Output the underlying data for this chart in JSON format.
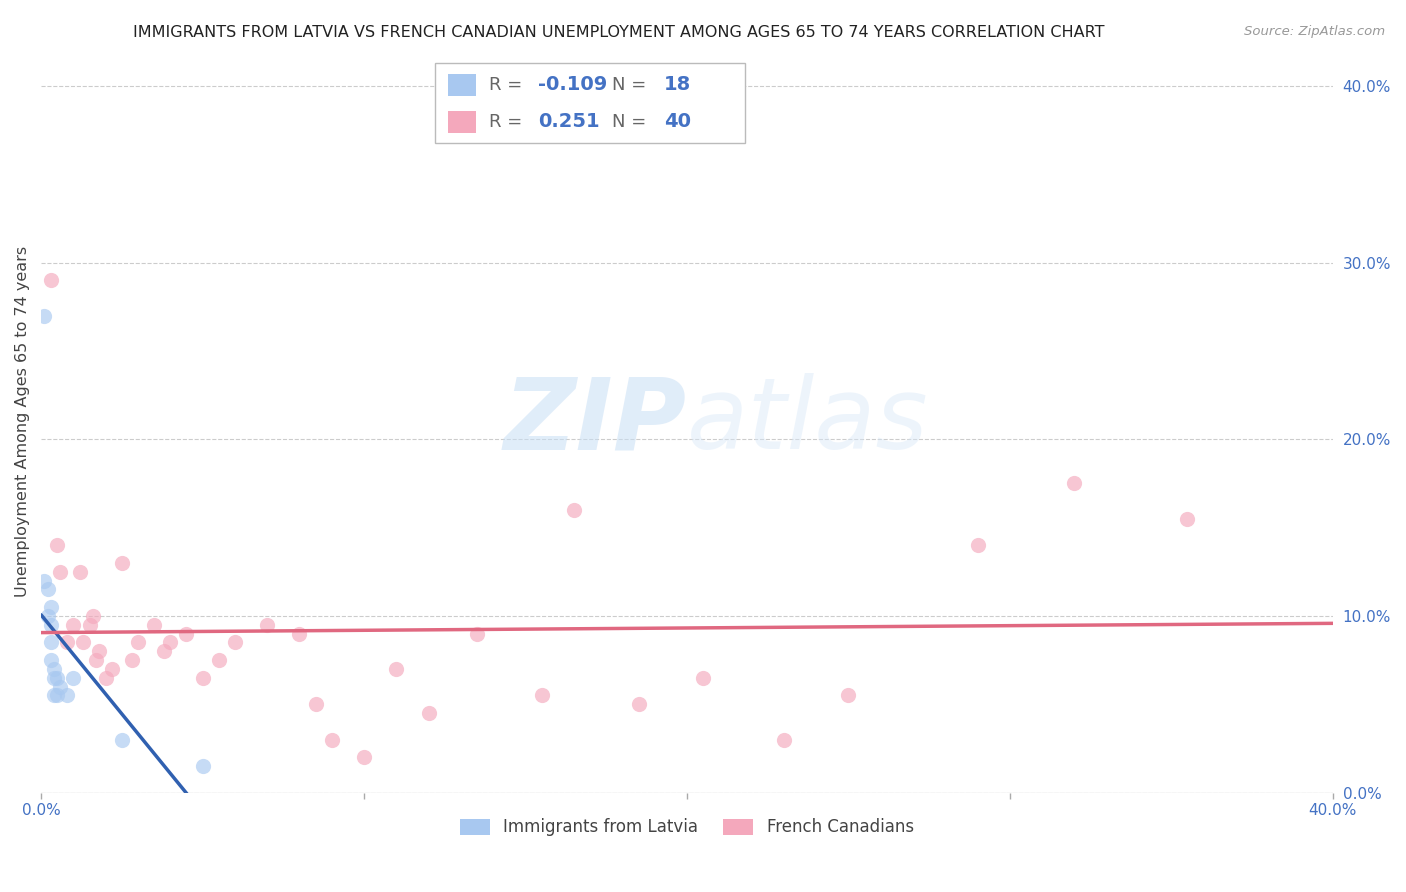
{
  "title": "IMMIGRANTS FROM LATVIA VS FRENCH CANADIAN UNEMPLOYMENT AMONG AGES 65 TO 74 YEARS CORRELATION CHART",
  "source": "Source: ZipAtlas.com",
  "ylabel": "Unemployment Among Ages 65 to 74 years",
  "xlim": [
    0.0,
    0.4
  ],
  "ylim": [
    0.0,
    0.42
  ],
  "xticks": [
    0.0,
    0.1,
    0.2,
    0.3,
    0.4
  ],
  "xtick_labels": [
    "0.0%",
    "",
    "",
    "",
    "40.0%"
  ],
  "yticks_right": [
    0.0,
    0.1,
    0.2,
    0.3,
    0.4
  ],
  "ytick_labels_right": [
    "0.0%",
    "10.0%",
    "20.0%",
    "30.0%",
    "40.0%"
  ],
  "legend_R_blue": "-0.109",
  "legend_N_blue": "18",
  "legend_R_pink": "0.251",
  "legend_N_pink": "40",
  "blue_color": "#a8c8f0",
  "pink_color": "#f4a8bc",
  "blue_line_color": "#3060b0",
  "pink_line_color": "#e06880",
  "blue_line_dash_color": "#90b8e8",
  "background_color": "#ffffff",
  "grid_color": "#cccccc",
  "blue_x": [
    0.001,
    0.001,
    0.002,
    0.002,
    0.003,
    0.003,
    0.003,
    0.003,
    0.004,
    0.004,
    0.004,
    0.005,
    0.005,
    0.006,
    0.008,
    0.01,
    0.025,
    0.05
  ],
  "blue_y": [
    0.27,
    0.12,
    0.115,
    0.1,
    0.105,
    0.095,
    0.085,
    0.075,
    0.07,
    0.065,
    0.055,
    0.065,
    0.055,
    0.06,
    0.055,
    0.065,
    0.03,
    0.015
  ],
  "pink_x": [
    0.003,
    0.005,
    0.006,
    0.008,
    0.01,
    0.012,
    0.013,
    0.015,
    0.016,
    0.017,
    0.018,
    0.02,
    0.022,
    0.025,
    0.028,
    0.03,
    0.035,
    0.038,
    0.04,
    0.045,
    0.05,
    0.055,
    0.06,
    0.07,
    0.08,
    0.085,
    0.09,
    0.1,
    0.11,
    0.12,
    0.135,
    0.155,
    0.165,
    0.185,
    0.205,
    0.23,
    0.25,
    0.29,
    0.32,
    0.355
  ],
  "pink_y": [
    0.29,
    0.14,
    0.125,
    0.085,
    0.095,
    0.125,
    0.085,
    0.095,
    0.1,
    0.075,
    0.08,
    0.065,
    0.07,
    0.13,
    0.075,
    0.085,
    0.095,
    0.08,
    0.085,
    0.09,
    0.065,
    0.075,
    0.085,
    0.095,
    0.09,
    0.05,
    0.03,
    0.02,
    0.07,
    0.045,
    0.09,
    0.055,
    0.16,
    0.05,
    0.065,
    0.03,
    0.055,
    0.14,
    0.175,
    0.155
  ]
}
